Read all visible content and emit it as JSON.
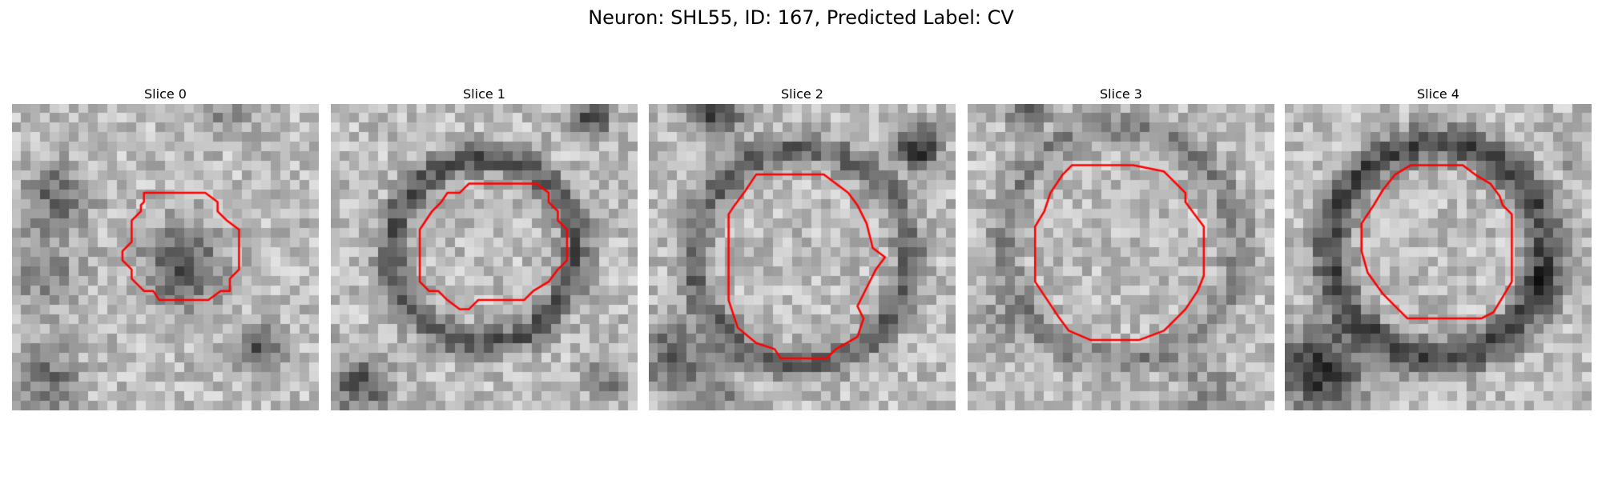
{
  "title": "Neuron: SHL55, ID: 167, Predicted Label: CV",
  "outline_color": "#ff0000",
  "slices": [
    {
      "label": "Slice 0",
      "seed": 11,
      "dark_blobs": [
        [
          0.15,
          0.3,
          0.1,
          -0.35
        ],
        [
          0.1,
          0.55,
          0.12,
          -0.25
        ],
        [
          0.56,
          0.53,
          0.13,
          -0.4
        ],
        [
          0.8,
          0.8,
          0.07,
          -0.45
        ],
        [
          0.12,
          0.9,
          0.1,
          -0.3
        ],
        [
          0.7,
          0.05,
          0.06,
          -0.2
        ]
      ],
      "rings": [],
      "outline": [
        [
          0.43,
          0.29
        ],
        [
          0.63,
          0.29
        ],
        [
          0.67,
          0.32
        ],
        [
          0.67,
          0.35
        ],
        [
          0.7,
          0.38
        ],
        [
          0.74,
          0.41
        ],
        [
          0.74,
          0.54
        ],
        [
          0.71,
          0.57
        ],
        [
          0.71,
          0.61
        ],
        [
          0.68,
          0.61
        ],
        [
          0.64,
          0.64
        ],
        [
          0.58,
          0.64
        ],
        [
          0.48,
          0.64
        ],
        [
          0.46,
          0.61
        ],
        [
          0.43,
          0.61
        ],
        [
          0.39,
          0.57
        ],
        [
          0.39,
          0.54
        ],
        [
          0.36,
          0.51
        ],
        [
          0.36,
          0.48
        ],
        [
          0.39,
          0.45
        ],
        [
          0.39,
          0.38
        ],
        [
          0.42,
          0.35
        ],
        [
          0.42,
          0.33
        ],
        [
          0.43,
          0.32
        ]
      ]
    },
    {
      "label": "Slice 1",
      "seed": 23,
      "dark_blobs": [
        [
          0.85,
          0.05,
          0.06,
          -0.45
        ],
        [
          0.1,
          0.92,
          0.1,
          -0.4
        ],
        [
          0.9,
          0.9,
          0.07,
          -0.25
        ]
      ],
      "rings": [
        [
          0.5,
          0.48,
          0.3,
          0.05,
          -0.4
        ]
      ],
      "outline": [
        [
          0.42,
          0.29
        ],
        [
          0.38,
          0.29
        ],
        [
          0.36,
          0.32
        ],
        [
          0.33,
          0.35
        ],
        [
          0.31,
          0.38
        ],
        [
          0.29,
          0.41
        ],
        [
          0.29,
          0.51
        ],
        [
          0.29,
          0.58
        ],
        [
          0.32,
          0.61
        ],
        [
          0.35,
          0.61
        ],
        [
          0.38,
          0.64
        ],
        [
          0.42,
          0.67
        ],
        [
          0.45,
          0.67
        ],
        [
          0.48,
          0.64
        ],
        [
          0.54,
          0.64
        ],
        [
          0.63,
          0.64
        ],
        [
          0.66,
          0.61
        ],
        [
          0.71,
          0.58
        ],
        [
          0.74,
          0.54
        ],
        [
          0.77,
          0.51
        ],
        [
          0.77,
          0.41
        ],
        [
          0.74,
          0.38
        ],
        [
          0.74,
          0.35
        ],
        [
          0.71,
          0.32
        ],
        [
          0.71,
          0.29
        ],
        [
          0.67,
          0.26
        ],
        [
          0.55,
          0.26
        ],
        [
          0.45,
          0.26
        ]
      ]
    },
    {
      "label": "Slice 2",
      "seed": 37,
      "dark_blobs": [
        [
          0.22,
          0.04,
          0.08,
          -0.5
        ],
        [
          0.88,
          0.15,
          0.07,
          -0.55
        ],
        [
          0.08,
          0.82,
          0.12,
          -0.35
        ],
        [
          0.22,
          0.95,
          0.08,
          -0.25
        ]
      ],
      "rings": [
        [
          0.5,
          0.5,
          0.35,
          0.05,
          -0.35
        ]
      ],
      "outline": [
        [
          0.35,
          0.23
        ],
        [
          0.4,
          0.23
        ],
        [
          0.57,
          0.23
        ],
        [
          0.61,
          0.26
        ],
        [
          0.65,
          0.29
        ],
        [
          0.68,
          0.33
        ],
        [
          0.71,
          0.39
        ],
        [
          0.73,
          0.47
        ],
        [
          0.77,
          0.5
        ],
        [
          0.74,
          0.54
        ],
        [
          0.71,
          0.6
        ],
        [
          0.68,
          0.66
        ],
        [
          0.7,
          0.7
        ],
        [
          0.68,
          0.76
        ],
        [
          0.61,
          0.8
        ],
        [
          0.58,
          0.83
        ],
        [
          0.43,
          0.83
        ],
        [
          0.41,
          0.8
        ],
        [
          0.35,
          0.78
        ],
        [
          0.29,
          0.73
        ],
        [
          0.26,
          0.64
        ],
        [
          0.26,
          0.55
        ],
        [
          0.26,
          0.46
        ],
        [
          0.26,
          0.36
        ],
        [
          0.28,
          0.33
        ],
        [
          0.31,
          0.29
        ]
      ]
    },
    {
      "label": "Slice 3",
      "seed": 53,
      "dark_blobs": [
        [
          0.2,
          0.03,
          0.06,
          -0.35
        ],
        [
          0.78,
          0.93,
          0.1,
          -0.2
        ],
        [
          0.1,
          0.72,
          0.09,
          -0.15
        ]
      ],
      "rings": [
        [
          0.5,
          0.46,
          0.38,
          0.05,
          -0.22
        ]
      ],
      "outline": [
        [
          0.34,
          0.2
        ],
        [
          0.38,
          0.2
        ],
        [
          0.54,
          0.2
        ],
        [
          0.64,
          0.22
        ],
        [
          0.68,
          0.26
        ],
        [
          0.71,
          0.29
        ],
        [
          0.71,
          0.32
        ],
        [
          0.74,
          0.36
        ],
        [
          0.77,
          0.4
        ],
        [
          0.77,
          0.56
        ],
        [
          0.75,
          0.61
        ],
        [
          0.71,
          0.67
        ],
        [
          0.68,
          0.7
        ],
        [
          0.64,
          0.74
        ],
        [
          0.56,
          0.77
        ],
        [
          0.4,
          0.77
        ],
        [
          0.33,
          0.74
        ],
        [
          0.3,
          0.7
        ],
        [
          0.26,
          0.64
        ],
        [
          0.22,
          0.58
        ],
        [
          0.22,
          0.4
        ],
        [
          0.25,
          0.35
        ],
        [
          0.27,
          0.29
        ],
        [
          0.31,
          0.23
        ]
      ]
    },
    {
      "label": "Slice 4",
      "seed": 71,
      "dark_blobs": [
        [
          0.12,
          0.87,
          0.13,
          -0.55
        ],
        [
          0.85,
          0.6,
          0.08,
          -0.2
        ],
        [
          0.95,
          0.18,
          0.05,
          -0.15
        ]
      ],
      "rings": [
        [
          0.5,
          0.48,
          0.35,
          0.06,
          -0.45
        ]
      ],
      "outline": [
        [
          0.36,
          0.23
        ],
        [
          0.41,
          0.2
        ],
        [
          0.5,
          0.2
        ],
        [
          0.58,
          0.2
        ],
        [
          0.62,
          0.23
        ],
        [
          0.67,
          0.26
        ],
        [
          0.7,
          0.3
        ],
        [
          0.71,
          0.33
        ],
        [
          0.74,
          0.36
        ],
        [
          0.74,
          0.4
        ],
        [
          0.74,
          0.52
        ],
        [
          0.74,
          0.58
        ],
        [
          0.71,
          0.63
        ],
        [
          0.68,
          0.68
        ],
        [
          0.64,
          0.7
        ],
        [
          0.58,
          0.7
        ],
        [
          0.48,
          0.7
        ],
        [
          0.4,
          0.7
        ],
        [
          0.36,
          0.66
        ],
        [
          0.32,
          0.62
        ],
        [
          0.27,
          0.55
        ],
        [
          0.25,
          0.48
        ],
        [
          0.25,
          0.39
        ],
        [
          0.29,
          0.33
        ],
        [
          0.32,
          0.28
        ]
      ]
    }
  ]
}
